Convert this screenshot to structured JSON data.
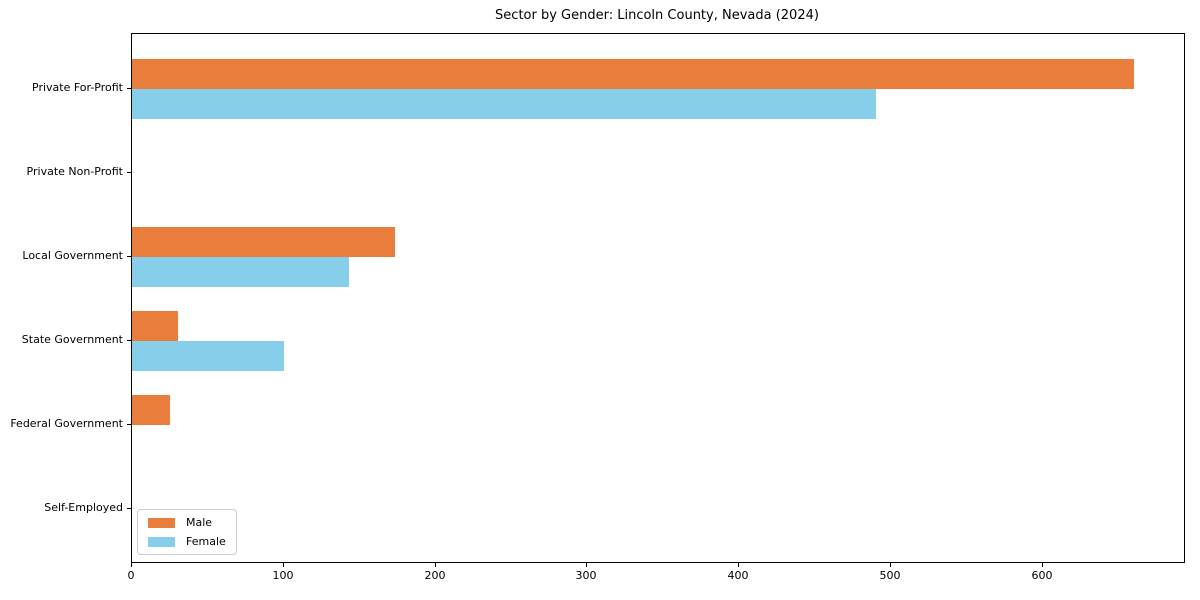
{
  "chart_data": {
    "type": "bar",
    "orientation": "horizontal",
    "title": "Sector by Gender: Lincoln County, Nevada (2024)",
    "categories": [
      "Private For-Profit",
      "Private Non-Profit",
      "Local Government",
      "State Government",
      "Federal Government",
      "Self-Employed"
    ],
    "series": [
      {
        "name": "Male",
        "color": "#E87D3C",
        "values": [
          660,
          0,
          173,
          30,
          25,
          0
        ]
      },
      {
        "name": "Female",
        "color": "#87CEEB",
        "values": [
          490,
          0,
          143,
          100,
          0,
          0
        ]
      }
    ],
    "xlabel": "",
    "ylabel": "",
    "xlim": [
      0,
      693
    ],
    "xticks": [
      0,
      100,
      200,
      300,
      400,
      500,
      600
    ],
    "grid": false,
    "legend_position": "lower left",
    "background_color": "#ffffff",
    "axis_color": "#000000"
  }
}
